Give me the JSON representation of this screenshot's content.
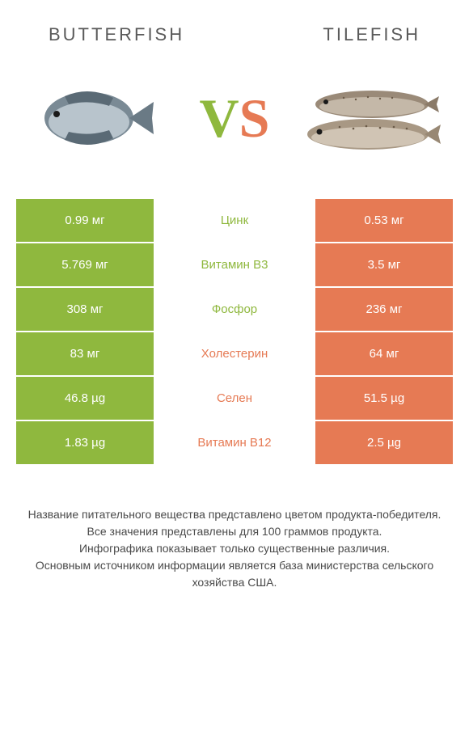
{
  "colors": {
    "green": "#8fb83e",
    "orange": "#e67a54",
    "mid_green": "#8fb83e",
    "mid_orange": "#e67a54",
    "white": "#ffffff"
  },
  "header": {
    "left": "BUTTERFISH",
    "right": "TILEFISH"
  },
  "vs": {
    "v": "V",
    "s": "S"
  },
  "rows": [
    {
      "left": "0.99 мг",
      "mid": "Цинк",
      "right": "0.53 мг",
      "winner": "left"
    },
    {
      "left": "5.769 мг",
      "mid": "Витамин B3",
      "right": "3.5 мг",
      "winner": "left"
    },
    {
      "left": "308 мг",
      "mid": "Фосфор",
      "right": "236 мг",
      "winner": "left"
    },
    {
      "left": "83 мг",
      "mid": "Холестерин",
      "right": "64 мг",
      "winner": "right"
    },
    {
      "left": "46.8 µg",
      "mid": "Селен",
      "right": "51.5 µg",
      "winner": "right"
    },
    {
      "left": "1.83 µg",
      "mid": "Витамин B12",
      "right": "2.5 µg",
      "winner": "right"
    }
  ],
  "footer": {
    "l1": "Название питательного вещества представлено цветом продукта-победителя.",
    "l2": "Все значения представлены для 100 граммов продукта.",
    "l3": "Инфографика показывает только существенные различия.",
    "l4": "Основным источником информации является база министерства сельского хозяйства США."
  }
}
